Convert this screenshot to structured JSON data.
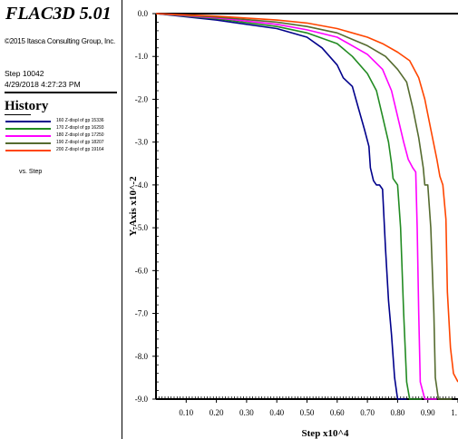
{
  "header": {
    "app_title": "FLAC3D 5.01",
    "copyright": "©2015 Itasca Consulting Group, Inc.",
    "step": "Step 10042",
    "datetime": "4/29/2018 4:27:23 PM"
  },
  "legend": {
    "title": "History",
    "vs_label": "vs. Step"
  },
  "colors": {
    "background": "#ffffff",
    "axis": "#000000"
  },
  "chart_data": {
    "type": "line",
    "xlabel": "Step x10^4",
    "ylabel": "Y-Axis x10^-2",
    "xlim": [
      0.0,
      1.0
    ],
    "ylim": [
      -9.0,
      0.0
    ],
    "xticks": [
      "0.10",
      "0.20",
      "0.30",
      "0.40",
      "0.50",
      "0.60",
      "0.70",
      "0.80",
      "0.90",
      "1."
    ],
    "yticks": [
      "0.0",
      "-1.0",
      "-2.0",
      "-3.0",
      "-4.0",
      "-5.0",
      "-6.0",
      "-7.0",
      "-8.0",
      "-9.0"
    ],
    "series": [
      {
        "name": "160 Z-displ of gp 15336",
        "color": "#00008b",
        "points": [
          [
            0,
            0
          ],
          [
            0.2,
            -0.15
          ],
          [
            0.4,
            -0.35
          ],
          [
            0.5,
            -0.55
          ],
          [
            0.55,
            -0.8
          ],
          [
            0.6,
            -1.2
          ],
          [
            0.62,
            -1.5
          ],
          [
            0.65,
            -1.7
          ],
          [
            0.67,
            -2.2
          ],
          [
            0.69,
            -2.7
          ],
          [
            0.705,
            -3.1
          ],
          [
            0.71,
            -3.6
          ],
          [
            0.72,
            -3.9
          ],
          [
            0.73,
            -4.0
          ],
          [
            0.74,
            -4.0
          ],
          [
            0.75,
            -4.1
          ],
          [
            0.76,
            -5.5
          ],
          [
            0.77,
            -6.7
          ],
          [
            0.78,
            -7.5
          ],
          [
            0.79,
            -8.5
          ],
          [
            0.8,
            -9.0
          ],
          [
            0.83,
            -9.0
          ]
        ]
      },
      {
        "name": "170 Z-displ of gp 16293",
        "color": "#228b22",
        "points": [
          [
            0,
            0
          ],
          [
            0.2,
            -0.12
          ],
          [
            0.4,
            -0.3
          ],
          [
            0.5,
            -0.45
          ],
          [
            0.6,
            -0.7
          ],
          [
            0.65,
            -1.0
          ],
          [
            0.7,
            -1.4
          ],
          [
            0.73,
            -1.8
          ],
          [
            0.75,
            -2.4
          ],
          [
            0.77,
            -3.0
          ],
          [
            0.78,
            -3.5
          ],
          [
            0.785,
            -3.85
          ],
          [
            0.8,
            -4.0
          ],
          [
            0.81,
            -5.0
          ],
          [
            0.82,
            -7.0
          ],
          [
            0.83,
            -8.6
          ],
          [
            0.84,
            -9.0
          ],
          [
            0.88,
            -9.0
          ]
        ]
      },
      {
        "name": "180 Z-displ of gp 17250",
        "color": "#ff00ff",
        "points": [
          [
            0,
            0
          ],
          [
            0.2,
            -0.1
          ],
          [
            0.4,
            -0.25
          ],
          [
            0.5,
            -0.38
          ],
          [
            0.6,
            -0.55
          ],
          [
            0.7,
            -0.95
          ],
          [
            0.75,
            -1.3
          ],
          [
            0.78,
            -1.8
          ],
          [
            0.8,
            -2.4
          ],
          [
            0.82,
            -3.0
          ],
          [
            0.835,
            -3.4
          ],
          [
            0.85,
            -3.6
          ],
          [
            0.86,
            -3.7
          ],
          [
            0.865,
            -5.0
          ],
          [
            0.87,
            -7.0
          ],
          [
            0.875,
            -8.6
          ],
          [
            0.89,
            -9.0
          ],
          [
            0.93,
            -9.0
          ]
        ]
      },
      {
        "name": "190 Z-displ of gp 18207",
        "color": "#556b2f",
        "points": [
          [
            0,
            0
          ],
          [
            0.2,
            -0.08
          ],
          [
            0.4,
            -0.2
          ],
          [
            0.5,
            -0.3
          ],
          [
            0.6,
            -0.45
          ],
          [
            0.7,
            -0.75
          ],
          [
            0.76,
            -1.0
          ],
          [
            0.8,
            -1.3
          ],
          [
            0.83,
            -1.6
          ],
          [
            0.85,
            -2.2
          ],
          [
            0.87,
            -2.9
          ],
          [
            0.885,
            -3.6
          ],
          [
            0.89,
            -4.0
          ],
          [
            0.9,
            -4.0
          ],
          [
            0.91,
            -5.0
          ],
          [
            0.92,
            -7.0
          ],
          [
            0.925,
            -8.5
          ],
          [
            0.935,
            -9.0
          ],
          [
            0.98,
            -9.0
          ]
        ]
      },
      {
        "name": "200 Z-displ of gp 19164",
        "color": "#ff4500",
        "points": [
          [
            0,
            0
          ],
          [
            0.2,
            -0.06
          ],
          [
            0.4,
            -0.15
          ],
          [
            0.5,
            -0.22
          ],
          [
            0.6,
            -0.35
          ],
          [
            0.7,
            -0.55
          ],
          [
            0.75,
            -0.7
          ],
          [
            0.8,
            -0.9
          ],
          [
            0.84,
            -1.1
          ],
          [
            0.87,
            -1.5
          ],
          [
            0.89,
            -2.0
          ],
          [
            0.91,
            -2.7
          ],
          [
            0.93,
            -3.4
          ],
          [
            0.94,
            -3.8
          ],
          [
            0.95,
            -4.0
          ],
          [
            0.96,
            -4.8
          ],
          [
            0.965,
            -6.5
          ],
          [
            0.975,
            -7.8
          ],
          [
            0.985,
            -8.4
          ],
          [
            1.0,
            -8.6
          ]
        ]
      }
    ]
  }
}
